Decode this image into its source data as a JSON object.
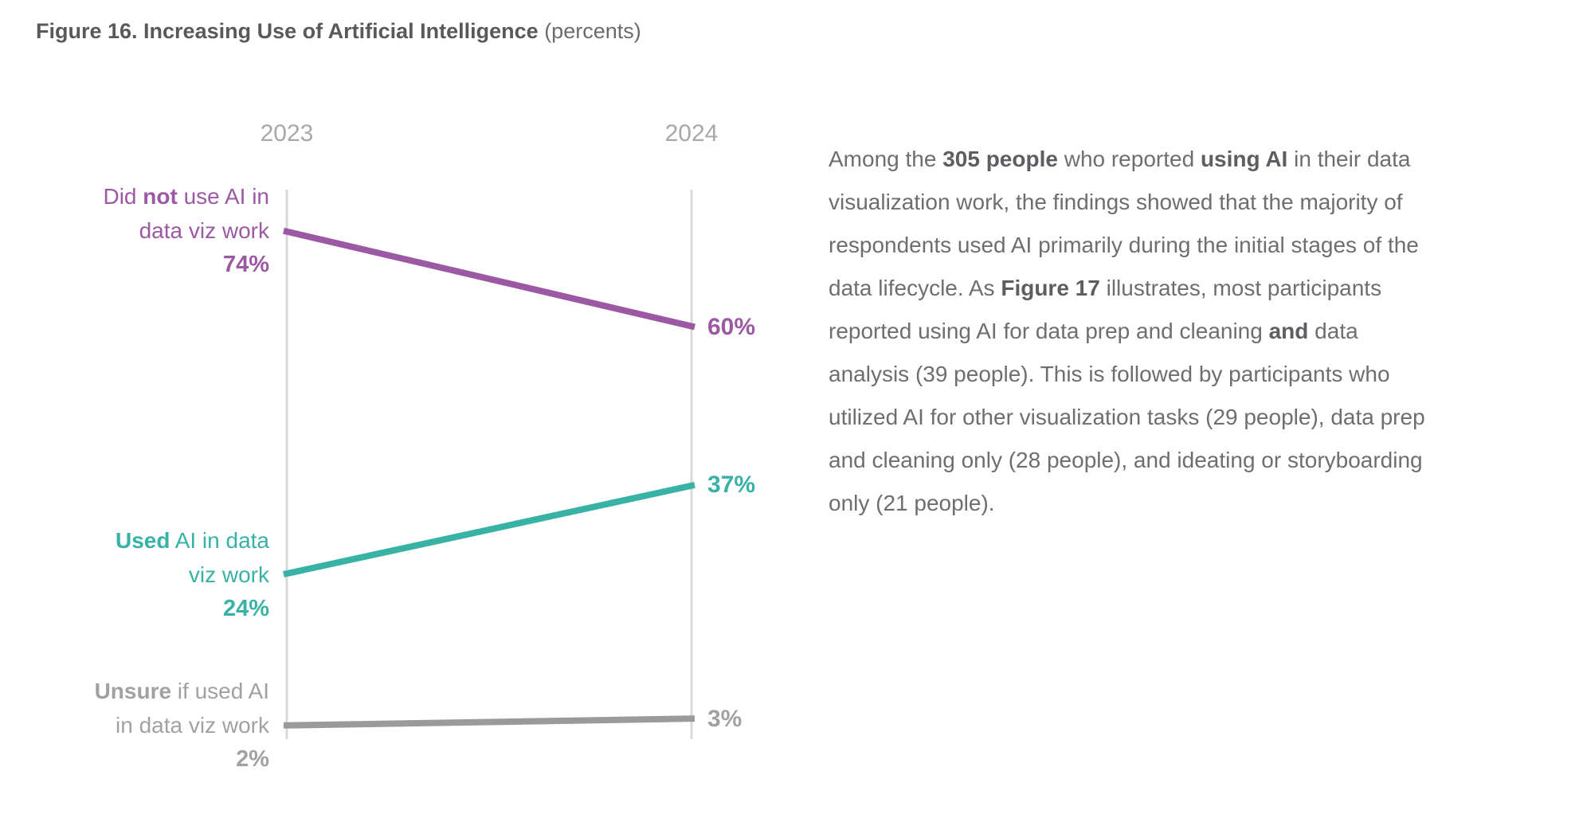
{
  "figure": {
    "title": "Figure 16. Increasing Use of Artificial Intelligence",
    "title_suffix": " (percents)"
  },
  "chart_data": {
    "type": "line",
    "subtype": "slopegraph",
    "title": "Figure 16. Increasing Use of Artificial Intelligence (percents)",
    "x": [
      "2023",
      "2024"
    ],
    "ylim": [
      0,
      80
    ],
    "unit": "percent",
    "grid": false,
    "legend_position": "inline-left-labels",
    "axis_color": "#D9D9DB",
    "series": [
      {
        "name": "Did not use AI in data viz work",
        "values": [
          74,
          60
        ],
        "color": "#9C59A3",
        "label_line1": [
          {
            "t": "Did "
          },
          {
            "t": "not",
            "b": true
          },
          {
            "t": " use AI in"
          }
        ],
        "label_line2": "data viz work",
        "start_label": "74%",
        "end_label": "60%"
      },
      {
        "name": "Used AI in data viz work",
        "values": [
          24,
          37
        ],
        "color": "#38B2A5",
        "label_line1": [
          {
            "t": "Used",
            "b": true
          },
          {
            "t": " AI in data"
          }
        ],
        "label_line2": "viz work",
        "start_label": "24%",
        "end_label": "37%"
      },
      {
        "name": "Unsure if used AI in data viz work",
        "values": [
          2,
          3
        ],
        "color": "#A0A1A3",
        "line_color": "#9A9A9A",
        "label_line1": [
          {
            "t": "Unsure",
            "b": true
          },
          {
            "t": " if used AI"
          }
        ],
        "label_line2": "in data viz work",
        "start_label": "2%",
        "end_label": "3%"
      }
    ]
  },
  "paragraph": {
    "segments": [
      {
        "t": "Among the "
      },
      {
        "t": "305 people",
        "b": true
      },
      {
        "t": " who reported "
      },
      {
        "t": "using AI",
        "b": true
      },
      {
        "t": " in their data"
      },
      {
        "br": true
      },
      {
        "t": "visualization work, the findings showed that the majority of"
      },
      {
        "br": true
      },
      {
        "t": "respondents used AI primarily during the initial stages of the"
      },
      {
        "br": true
      },
      {
        "t": "data lifecycle. As "
      },
      {
        "t": "Figure 17",
        "b": true
      },
      {
        "t": " illustrates, most participants"
      },
      {
        "br": true
      },
      {
        "t": "reported using AI for data prep and cleaning "
      },
      {
        "t": "and",
        "b": true
      },
      {
        "t": " data"
      },
      {
        "br": true
      },
      {
        "t": "analysis (39 people). This is followed by participants who"
      },
      {
        "br": true
      },
      {
        "t": "utilized AI for other visualization tasks (29 people), data prep"
      },
      {
        "br": true
      },
      {
        "t": "and cleaning only (28 people), and ideating or storyboarding"
      },
      {
        "br": true
      },
      {
        "t": "only (21 people)."
      }
    ]
  }
}
